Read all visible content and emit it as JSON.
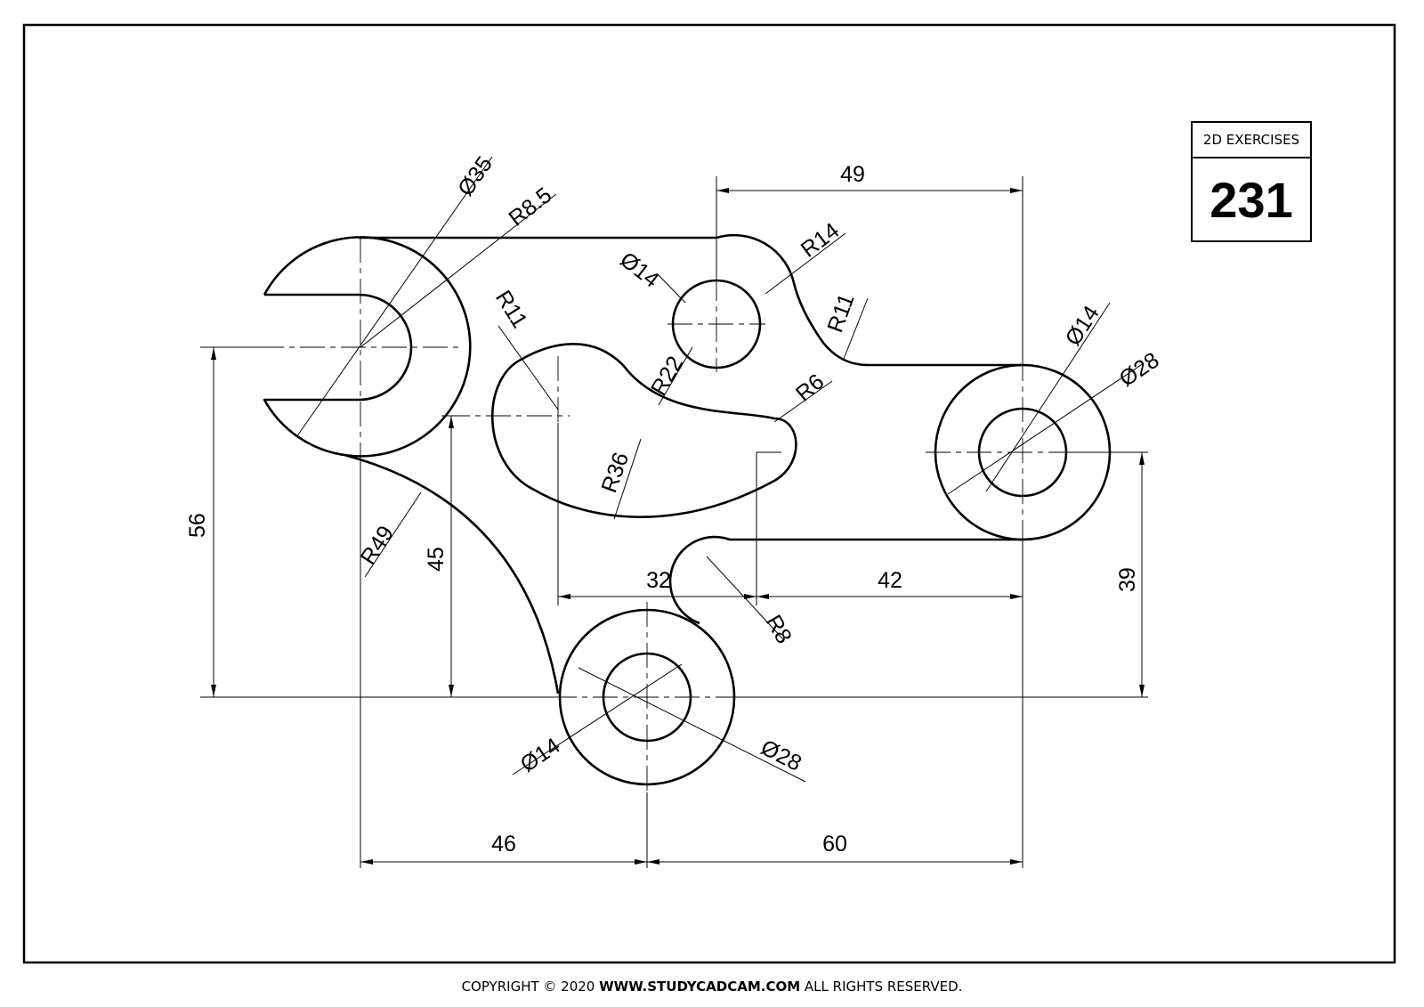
{
  "title_block": {
    "label": "2D EXERCISES",
    "number": "231"
  },
  "footer": {
    "copyright": "COPYRIGHT © 2020 ",
    "site": "WWW.STUDYCADCAM.COM",
    "rights": " ALL RIGHTS RESERVED."
  },
  "dimensions": {
    "d35": "Ø35",
    "r8_5": "R8.5",
    "d49": "49",
    "r14": "R14",
    "d14_top": "Ø14",
    "r11_top": "R11",
    "r11_left": "R11",
    "r22": "R22",
    "r6": "R6",
    "d14_right": "Ø14",
    "d28_right": "Ø28",
    "r36": "R36",
    "d56": "56",
    "r49": "R49",
    "d45": "45",
    "d32": "32",
    "d42": "42",
    "d39": "39",
    "r8": "R8",
    "d14_bottom": "Ø14",
    "d28_bottom": "Ø28",
    "d46": "46",
    "d60": "60"
  }
}
